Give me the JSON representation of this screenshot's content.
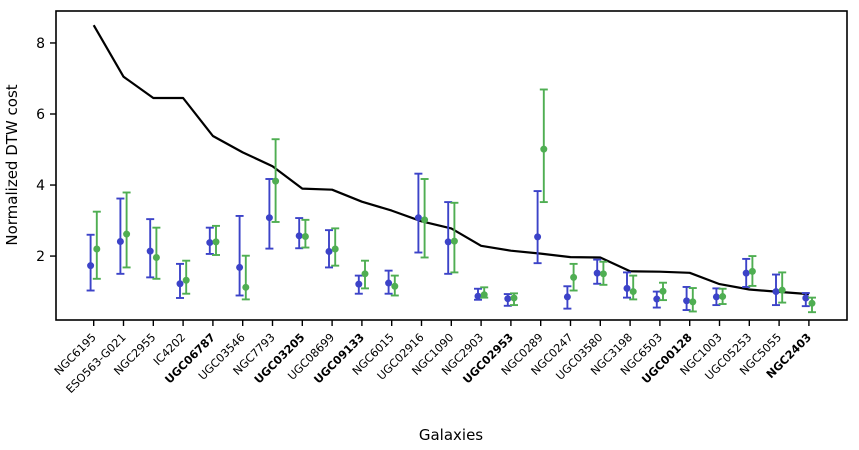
{
  "figure": {
    "kind": "matplotlib-style errorbar plot",
    "background": "#ffffff"
  },
  "chart_data": {
    "type": "scatter",
    "subtype": "errorbar-points-with-line",
    "title": "",
    "xlabel": "Galaxies",
    "ylabel": "Normalized DTW cost",
    "ylim": [
      0.2,
      8.9
    ],
    "yticks": [
      2,
      4,
      6,
      8
    ],
    "grid": "off",
    "legend": "none",
    "categories": [
      "NGC6195",
      "ESO563-G021",
      "NGC2955",
      "IC4202",
      "UGC06787",
      "UGC03546",
      "NGC7793",
      "UGC03205",
      "UGC08699",
      "UGC09133",
      "NGC6015",
      "UGC02916",
      "NGC1090",
      "NGC2903",
      "UGC02953",
      "NGC0289",
      "NGC0247",
      "UGC03580",
      "NGC3198",
      "NGC6503",
      "UGC00128",
      "NGC1003",
      "UGC05253",
      "NGC5055",
      "NGC2403"
    ],
    "bold_categories": [
      "UGC06787",
      "UGC03205",
      "UGC09133",
      "UGC02953",
      "UGC00128",
      "NGC2403"
    ],
    "series": [
      {
        "name": "blue-errorbar-series",
        "color": "#3c43c8",
        "values": [
          1.73,
          2.41,
          2.14,
          1.22,
          2.38,
          1.68,
          3.08,
          2.57,
          2.13,
          1.21,
          1.24,
          3.08,
          2.4,
          0.87,
          0.8,
          2.54,
          0.85,
          1.52,
          1.09,
          0.79,
          0.74,
          0.85,
          1.52,
          1.0,
          0.82
        ],
        "err_lo": [
          1.03,
          1.5,
          1.4,
          0.82,
          2.06,
          0.89,
          2.21,
          2.22,
          1.68,
          0.94,
          0.94,
          2.1,
          1.5,
          0.77,
          0.6,
          1.8,
          0.52,
          1.22,
          0.83,
          0.55,
          0.48,
          0.62,
          1.13,
          0.62,
          0.59
        ],
        "err_hi": [
          2.6,
          3.62,
          3.04,
          1.78,
          2.8,
          3.13,
          4.17,
          3.07,
          2.73,
          1.45,
          1.59,
          4.32,
          3.52,
          1.08,
          0.93,
          3.83,
          1.15,
          1.9,
          1.54,
          1.0,
          1.13,
          1.09,
          1.92,
          1.48,
          0.96
        ]
      },
      {
        "name": "green-errorbar-series",
        "color": "#4fae52",
        "values": [
          2.2,
          2.62,
          1.96,
          1.32,
          2.4,
          1.12,
          4.11,
          2.55,
          2.2,
          1.5,
          1.15,
          3.02,
          2.42,
          0.91,
          0.82,
          5.01,
          1.4,
          1.5,
          1.0,
          1.01,
          0.71,
          0.86,
          1.57,
          1.04,
          0.67
        ],
        "err_lo": [
          1.36,
          1.68,
          1.36,
          0.94,
          2.03,
          0.78,
          2.96,
          2.24,
          1.73,
          1.09,
          0.89,
          1.96,
          1.54,
          0.83,
          0.62,
          3.52,
          1.03,
          1.19,
          0.78,
          0.76,
          0.44,
          0.65,
          1.16,
          0.69,
          0.42
        ],
        "err_hi": [
          3.25,
          3.79,
          2.8,
          1.87,
          2.85,
          2.01,
          5.29,
          3.02,
          2.78,
          1.87,
          1.45,
          4.17,
          3.5,
          1.12,
          0.95,
          6.69,
          1.78,
          1.84,
          1.45,
          1.25,
          1.1,
          1.08,
          2.0,
          1.54,
          0.83
        ]
      }
    ],
    "line": {
      "name": "sorted-cost-line",
      "color": "#000000",
      "values": [
        8.5,
        7.05,
        6.45,
        6.45,
        5.38,
        4.92,
        4.53,
        3.9,
        3.87,
        3.53,
        3.28,
        2.98,
        2.78,
        2.29,
        2.15,
        2.07,
        1.97,
        1.96,
        1.57,
        1.56,
        1.53,
        1.21,
        1.06,
        0.99,
        0.93
      ]
    }
  }
}
